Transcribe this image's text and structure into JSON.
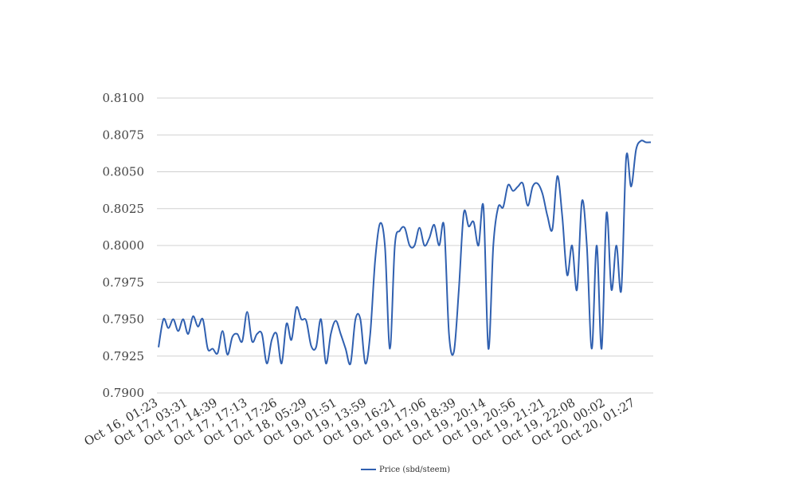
{
  "chart_data": {
    "type": "line",
    "title": "",
    "xlabel": "",
    "ylabel": "",
    "ylim": [
      0.79,
      0.81
    ],
    "yticks": [
      "0.7900",
      "0.7925",
      "0.7950",
      "0.7975",
      "0.8000",
      "0.8025",
      "0.8050",
      "0.8075",
      "0.8100"
    ],
    "x_tick_labels": [
      "Oct 16, 01:23",
      "Oct 17, 03:31",
      "Oct 17, 14:39",
      "Oct 17, 17:13",
      "Oct 17, 17:26",
      "Oct 18, 05:29",
      "Oct 19, 01:51",
      "Oct 19, 13:59",
      "Oct 19, 16:21",
      "Oct 19, 17:06",
      "Oct 19, 18:39",
      "Oct 19, 20:14",
      "Oct 19, 20:56",
      "Oct 19, 21:21",
      "Oct 19, 22:08",
      "Oct 20, 00:02",
      "Oct 20, 01:27"
    ],
    "grid": true,
    "legend_position": "bottom",
    "color": "#3060b0",
    "series": [
      {
        "name": "Price (sbd/steem)",
        "values": [
          0.7931,
          0.795,
          0.7944,
          0.795,
          0.7942,
          0.795,
          0.794,
          0.7952,
          0.7945,
          0.795,
          0.793,
          0.793,
          0.7927,
          0.7942,
          0.7926,
          0.7938,
          0.794,
          0.7935,
          0.7955,
          0.7935,
          0.794,
          0.794,
          0.792,
          0.7936,
          0.794,
          0.792,
          0.7947,
          0.7936,
          0.7958,
          0.795,
          0.7949,
          0.7932,
          0.7931,
          0.795,
          0.792,
          0.794,
          0.7949,
          0.794,
          0.793,
          0.792,
          0.795,
          0.795,
          0.792,
          0.794,
          0.799,
          0.8015,
          0.7999,
          0.793,
          0.8,
          0.801,
          0.8012,
          0.8,
          0.8,
          0.8012,
          0.8,
          0.8005,
          0.8014,
          0.8,
          0.8013,
          0.794,
          0.7928,
          0.797,
          0.8022,
          0.8013,
          0.8016,
          0.8,
          0.8026,
          0.793,
          0.8,
          0.8026,
          0.8026,
          0.8041,
          0.8037,
          0.804,
          0.8042,
          0.8027,
          0.804,
          0.8042,
          0.8035,
          0.802,
          0.8011,
          0.8047,
          0.802,
          0.798,
          0.8,
          0.797,
          0.803,
          0.8,
          0.793,
          0.8,
          0.793,
          0.8022,
          0.797,
          0.8,
          0.797,
          0.806,
          0.804,
          0.8065,
          0.8071,
          0.807,
          0.807
        ]
      }
    ]
  }
}
